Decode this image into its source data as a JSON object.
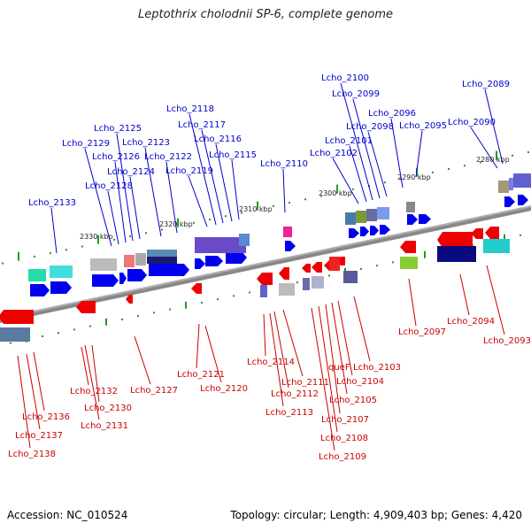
{
  "title": "Leptothrix cholodnii SP-6, complete genome",
  "footer": {
    "accession": "Accession: NC_010524",
    "topology": "Topology: circular; Length: 4,909,403 bp; Genes: 4,420"
  },
  "colors": {
    "backbone": "#888888",
    "forward_gene": "#0000ee",
    "reverse_gene": "#ee0000",
    "forward_label": "#0000cc",
    "reverse_label": "#cc0000",
    "tick": "#229922"
  },
  "kbp_labels": [
    "2280 kbp",
    "2290 kbp",
    "2300 kbp",
    "2310 kbp",
    "2320 kbp",
    "2330 kbp"
  ],
  "forward_labels": [
    "Lcho_2089",
    "Lcho_2090",
    "Lcho_2095",
    "Lcho_2096",
    "Lcho_2098",
    "Lcho_2099",
    "Lcho_2100",
    "Lcho_2101",
    "Lcho_2102",
    "Lcho_2110",
    "Lcho_2115",
    "Lcho_2116",
    "Lcho_2117",
    "Lcho_2118",
    "Lcho_2119",
    "Lcho_2122",
    "Lcho_2123",
    "Lcho_2124",
    "Lcho_2125",
    "Lcho_2126",
    "Lcho_2128",
    "Lcho_2129",
    "Lcho_2133"
  ],
  "reverse_labels": [
    "Lcho_2093",
    "Lcho_2094",
    "Lcho_2097",
    "Lcho_2103",
    "Lcho_2104",
    "Lcho_2105",
    "Lcho_2107",
    "Lcho_2108",
    "Lcho_2109",
    "Lcho_2111",
    "Lcho_2112",
    "Lcho_2113",
    "Lcho_2114",
    "Lcho_2120",
    "Lcho_2121",
    "Lcho_2127",
    "Lcho_2130",
    "Lcho_2131",
    "Lcho_2132",
    "Lcho_2136",
    "Lcho_2137",
    "Lcho_2138",
    "queF"
  ]
}
